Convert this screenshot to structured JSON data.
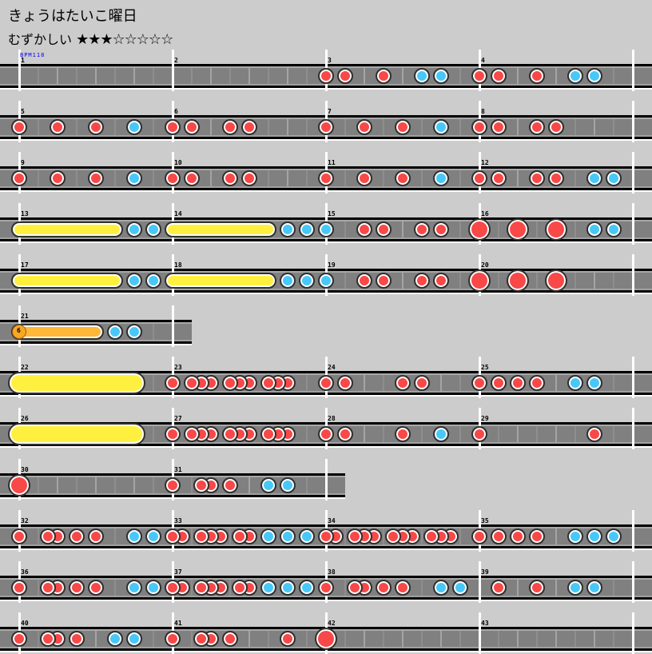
{
  "song": {
    "title": "きょうはたいこ曜日",
    "difficulty": "むずかしい",
    "stars_filled": 3,
    "stars_total": 8,
    "stars_text": "★★★☆☆☆☆☆"
  },
  "bpm_label": "BPM118",
  "colors": {
    "don": "#f84848",
    "ka": "#48c8f8",
    "roll": "#fff040",
    "balloon": "#ffb838",
    "lane": "#808080",
    "background": "#cccccc",
    "bpm": "#0000ee"
  },
  "note_legend": {
    "d": "don",
    "k": "ka",
    "D": "big don",
    "R": "drumroll start-end (16ths)",
    "G": "big drumroll start-end",
    "B": "balloon start-end:hits"
  },
  "measures": [
    {
      "n": 1,
      "notes": []
    },
    {
      "n": 2,
      "notes": []
    },
    {
      "n": 3,
      "notes": [
        "d0",
        "d2",
        "d6",
        "k10",
        "k12"
      ]
    },
    {
      "n": 4,
      "notes": [
        "d0",
        "d2",
        "d6",
        "k10",
        "k12"
      ]
    },
    {
      "n": 5,
      "notes": [
        "d0",
        "d4",
        "d8",
        "k12"
      ]
    },
    {
      "n": 6,
      "notes": [
        "d0",
        "d2",
        "d6",
        "d8"
      ]
    },
    {
      "n": 7,
      "notes": [
        "d0",
        "d4",
        "d8",
        "k12"
      ]
    },
    {
      "n": 8,
      "notes": [
        "d0",
        "d2",
        "d6",
        "d8"
      ]
    },
    {
      "n": 9,
      "notes": [
        "d0",
        "d4",
        "d8",
        "k12"
      ]
    },
    {
      "n": 10,
      "notes": [
        "d0",
        "d2",
        "d6",
        "d8"
      ]
    },
    {
      "n": 11,
      "notes": [
        "d0",
        "d4",
        "d8",
        "k12"
      ]
    },
    {
      "n": 12,
      "notes": [
        "d0",
        "d2",
        "d6",
        "d8",
        "k12",
        "k14"
      ]
    },
    {
      "n": 13,
      "notes": [
        "R0-10",
        "k12",
        "k14"
      ]
    },
    {
      "n": 14,
      "notes": [
        "R0-10",
        "k12",
        "k14"
      ]
    },
    {
      "n": 15,
      "notes": [
        "k0",
        "d4",
        "d6",
        "d10",
        "d12"
      ]
    },
    {
      "n": 16,
      "notes": [
        "D0",
        "D4",
        "D8",
        "k12",
        "k14"
      ]
    },
    {
      "n": 17,
      "notes": [
        "R0-10",
        "k12",
        "k14"
      ]
    },
    {
      "n": 18,
      "notes": [
        "R0-10",
        "k12",
        "k14"
      ]
    },
    {
      "n": 19,
      "notes": [
        "k0",
        "d4",
        "d6",
        "d10",
        "d12"
      ]
    },
    {
      "n": 20,
      "notes": [
        "D0",
        "D4",
        "D8"
      ]
    },
    {
      "n": 21,
      "notes": [
        "B0-8:6",
        "k10",
        "k12"
      ]
    },
    {
      "n": 22,
      "notes": [
        "G0-12"
      ]
    },
    {
      "n": 23,
      "notes": [
        "d0",
        "d2",
        "d3",
        "d4",
        "d6",
        "d7",
        "d8",
        "d10",
        "d11",
        "d12"
      ]
    },
    {
      "n": 24,
      "notes": [
        "d0",
        "d2",
        "d8",
        "d10"
      ]
    },
    {
      "n": 25,
      "notes": [
        "d0",
        "d2",
        "d4",
        "d6",
        "k10",
        "k12"
      ]
    },
    {
      "n": 26,
      "notes": [
        "G0-12"
      ]
    },
    {
      "n": 27,
      "notes": [
        "d0",
        "d2",
        "d3",
        "d4",
        "d6",
        "d7",
        "d8",
        "d10",
        "d11",
        "d12"
      ]
    },
    {
      "n": 28,
      "notes": [
        "d0",
        "d2",
        "d8",
        "k12"
      ]
    },
    {
      "n": 29,
      "notes": [
        "d0",
        "d12"
      ]
    },
    {
      "n": 30,
      "notes": [
        "D0"
      ]
    },
    {
      "n": 31,
      "notes": [
        "d0",
        "d3",
        "d4",
        "d6",
        "k10",
        "k12"
      ]
    },
    {
      "n": 32,
      "notes": [
        "d0",
        "d3",
        "d4",
        "d6",
        "d8",
        "k12",
        "k14"
      ]
    },
    {
      "n": 33,
      "notes": [
        "d0",
        "d1",
        "d3",
        "d4",
        "d5",
        "d7",
        "d8",
        "k10",
        "k12",
        "k14"
      ]
    },
    {
      "n": 34,
      "notes": [
        "d0",
        "d1",
        "d3",
        "d4",
        "d5",
        "d7",
        "d8",
        "d9",
        "d11",
        "d12",
        "d13"
      ]
    },
    {
      "n": 35,
      "notes": [
        "d0",
        "d2",
        "d4",
        "d6",
        "k10",
        "k12",
        "k14"
      ]
    },
    {
      "n": 36,
      "notes": [
        "d0",
        "d3",
        "d4",
        "d6",
        "d8",
        "k12",
        "k14"
      ]
    },
    {
      "n": 37,
      "notes": [
        "d0",
        "d1",
        "d3",
        "d4",
        "d5",
        "d7",
        "d8",
        "k10",
        "k12",
        "k14"
      ]
    },
    {
      "n": 38,
      "notes": [
        "d0",
        "d3",
        "d4",
        "d6",
        "d8",
        "k12",
        "k14"
      ]
    },
    {
      "n": 39,
      "notes": [
        "d2",
        "d6",
        "k10",
        "k12"
      ]
    },
    {
      "n": 40,
      "notes": [
        "d0",
        "d3",
        "d4",
        "d6",
        "k10",
        "k12"
      ]
    },
    {
      "n": 41,
      "notes": [
        "d0",
        "d3",
        "d4",
        "d6",
        "d12"
      ]
    },
    {
      "n": 42,
      "notes": [
        "D0"
      ]
    },
    {
      "n": 43,
      "notes": []
    }
  ]
}
